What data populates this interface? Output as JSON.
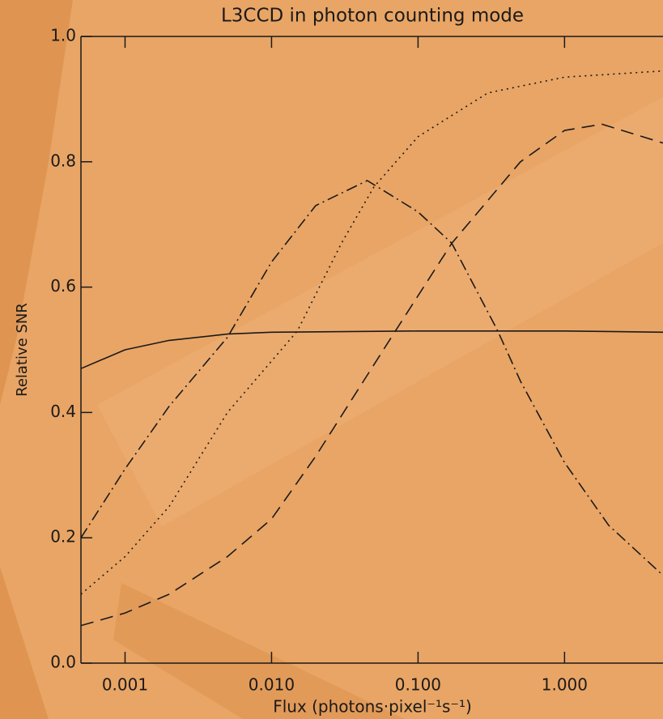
{
  "chart_data": {
    "type": "line",
    "title": "L3CCD in photon counting mode",
    "xlabel": "Flux (photons·pixel⁻¹s⁻¹)",
    "ylabel": "Relative SNR",
    "xscale": "log",
    "xlim": [
      0.0005,
      4.7
    ],
    "ylim": [
      0,
      1
    ],
    "xticks": [
      0.001,
      {
        "value": 0.01,
        "label": "0.010"
      },
      {
        "value": 0.1,
        "label": "0.100"
      },
      {
        "value": 1,
        "label": "1.000"
      }
    ],
    "yticks": [
      {
        "value": 0,
        "label": "0.0"
      },
      0.2,
      0.4,
      0.6,
      0.8,
      {
        "value": 1,
        "label": "1.0"
      }
    ],
    "series": [
      {
        "style": "solid",
        "color": "#1a1a1a",
        "x": [
          0.0005,
          0.001,
          0.002,
          0.005,
          0.01,
          0.1,
          1,
          4.7
        ],
        "values": [
          0.47,
          0.5,
          0.515,
          0.525,
          0.528,
          0.53,
          0.53,
          0.528
        ]
      },
      {
        "style": "dashdot",
        "color": "#1a1a1a",
        "x": [
          0.0005,
          0.001,
          0.002,
          0.005,
          0.01,
          0.02,
          0.045,
          0.1,
          0.17,
          0.35,
          0.5,
          1,
          2,
          4.7
        ],
        "values": [
          0.2,
          0.31,
          0.41,
          0.52,
          0.64,
          0.73,
          0.77,
          0.72,
          0.67,
          0.53,
          0.45,
          0.32,
          0.22,
          0.14
        ]
      },
      {
        "style": "dotted",
        "color": "#1a1a1a",
        "x": [
          0.0005,
          0.001,
          0.002,
          0.005,
          0.015,
          0.03,
          0.05,
          0.1,
          0.3,
          1,
          4.7
        ],
        "values": [
          0.11,
          0.17,
          0.25,
          0.4,
          0.53,
          0.67,
          0.76,
          0.84,
          0.91,
          0.935,
          0.945
        ]
      },
      {
        "style": "dashed",
        "color": "#1a1a1a",
        "x": [
          0.0005,
          0.001,
          0.002,
          0.005,
          0.01,
          0.02,
          0.07,
          0.17,
          0.5,
          1,
          1.8,
          4.7
        ],
        "values": [
          0.06,
          0.08,
          0.11,
          0.17,
          0.23,
          0.33,
          0.53,
          0.67,
          0.8,
          0.85,
          0.86,
          0.83
        ]
      }
    ]
  }
}
